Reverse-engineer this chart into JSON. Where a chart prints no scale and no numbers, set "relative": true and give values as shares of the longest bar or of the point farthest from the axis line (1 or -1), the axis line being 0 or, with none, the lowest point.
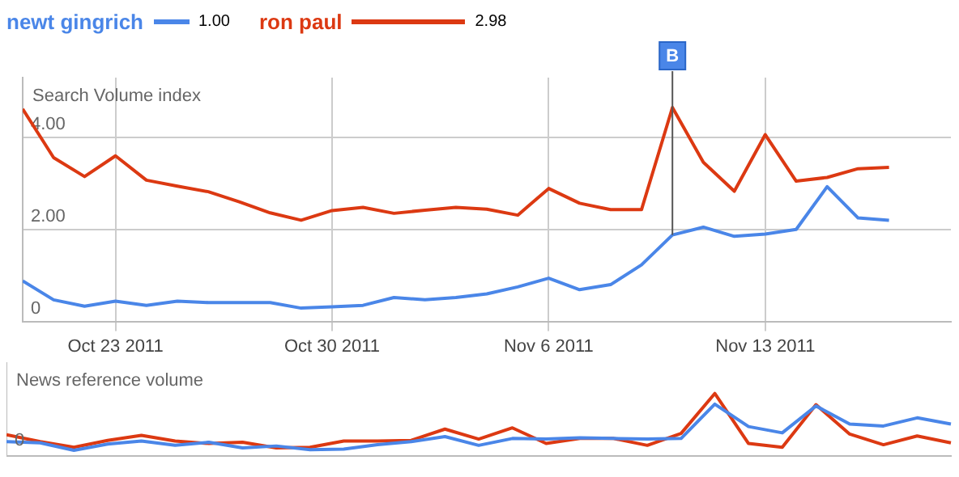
{
  "chart_data": [
    {
      "type": "line",
      "title": "Search Volume index",
      "x": [
        "2011-10-20",
        "2011-10-21",
        "2011-10-22",
        "2011-10-23",
        "2011-10-24",
        "2011-10-25",
        "2011-10-26",
        "2011-10-27",
        "2011-10-28",
        "2011-10-29",
        "2011-10-30",
        "2011-10-31",
        "2011-11-01",
        "2011-11-02",
        "2011-11-03",
        "2011-11-04",
        "2011-11-05",
        "2011-11-06",
        "2011-11-07",
        "2011-11-08",
        "2011-11-09",
        "2011-11-10",
        "2011-11-11",
        "2011-11-12",
        "2011-11-13",
        "2011-11-14",
        "2011-11-15",
        "2011-11-16",
        "2011-11-17"
      ],
      "series": [
        {
          "name": "newt gingrich",
          "color": "#4a86e8",
          "values": [
            0.88,
            0.47,
            0.33,
            0.44,
            0.35,
            0.44,
            0.41,
            0.41,
            0.41,
            0.29,
            0.32,
            0.35,
            0.52,
            0.47,
            0.52,
            0.6,
            0.75,
            0.94,
            0.69,
            0.8,
            1.23,
            1.88,
            2.05,
            1.85,
            1.9,
            2.0,
            2.93,
            2.25,
            2.2
          ]
        },
        {
          "name": "ron paul",
          "color": "#dc3912",
          "values": [
            4.62,
            3.56,
            3.15,
            3.6,
            3.07,
            2.94,
            2.82,
            2.6,
            2.36,
            2.2,
            2.41,
            2.48,
            2.35,
            2.42,
            2.48,
            2.44,
            2.31,
            2.89,
            2.57,
            2.43,
            2.43,
            4.65,
            3.46,
            2.83,
            4.06,
            3.05,
            3.13,
            3.32,
            3.35
          ]
        }
      ],
      "annotations": [
        "1.00",
        "2.98"
      ],
      "xlim": [
        "2011-10-20",
        "2011-11-19"
      ],
      "xticks": [
        {
          "value": "2011-10-23",
          "label": "Oct 23 2011"
        },
        {
          "value": "2011-10-30",
          "label": "Oct 30 2011"
        },
        {
          "value": "2011-11-06",
          "label": "Nov 6 2011"
        },
        {
          "value": "2011-11-13",
          "label": "Nov 13 2011"
        }
      ],
      "ylim": [
        0,
        5.3
      ],
      "yticks": [
        0,
        {
          "value": 2,
          "label": "2.00"
        },
        {
          "value": 4,
          "label": "4.00"
        }
      ],
      "grid": true,
      "legend": "top left",
      "marker": "none",
      "ref_lines": [
        {
          "axis": "x",
          "value": "2011-11-10",
          "label": "B"
        }
      ]
    },
    {
      "type": "line",
      "title": "News reference volume",
      "relative": true,
      "tick_labels": false,
      "marker": "none",
      "categories": [
        null,
        null,
        null,
        null,
        null,
        null,
        null,
        null,
        null,
        null,
        null,
        null,
        null,
        null,
        null,
        null,
        null,
        null,
        null,
        null,
        null,
        null,
        null,
        null,
        null,
        null,
        null,
        null,
        null
      ],
      "annotations": [
        "0"
      ],
      "series": [
        {
          "color": "#4a86e8",
          "values": [
            0.23,
            0.21,
            0.09,
            0.19,
            0.24,
            0.17,
            0.22,
            0.13,
            0.16,
            0.1,
            0.11,
            0.18,
            0.23,
            0.31,
            0.17,
            0.28,
            0.27,
            0.29,
            0.28,
            0.27,
            0.28,
            0.83,
            0.47,
            0.37,
            0.8,
            0.51,
            0.48,
            0.61,
            0.51
          ]
        },
        {
          "color": "#dc3912",
          "values": [
            0.34,
            0.23,
            0.14,
            0.25,
            0.33,
            0.24,
            0.2,
            0.22,
            0.13,
            0.14,
            0.24,
            0.24,
            0.25,
            0.43,
            0.27,
            0.45,
            0.2,
            0.28,
            0.28,
            0.17,
            0.36,
            1,
            0.2,
            0.14,
            0.82,
            0.35,
            0.18,
            0.32,
            0.21
          ]
        }
      ]
    }
  ]
}
